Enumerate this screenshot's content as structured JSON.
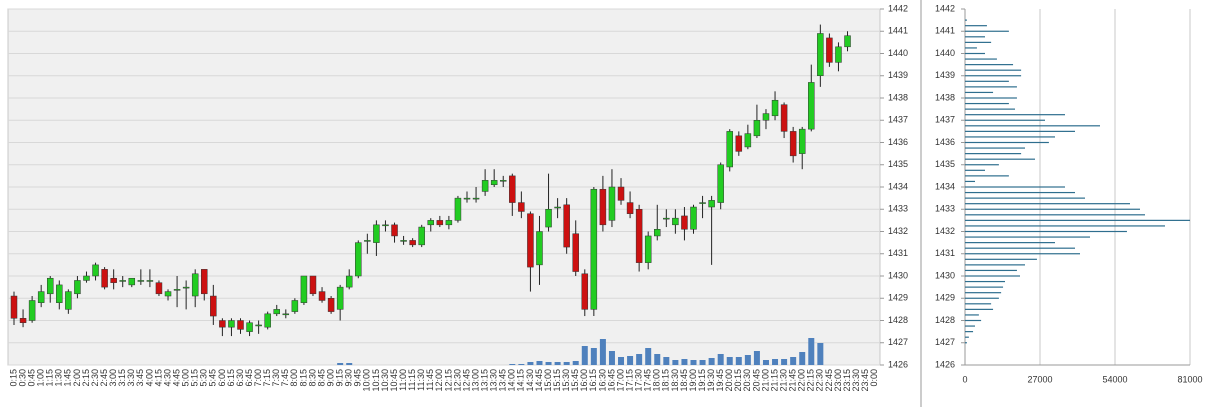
{
  "chart_data": [
    {
      "type": "candlestick",
      "categories": [
        "0:15",
        "0:30",
        "0:45",
        "1:00",
        "1:15",
        "1:30",
        "1:45",
        "2:00",
        "2:15",
        "2:30",
        "2:45",
        "3:00",
        "3:15",
        "3:30",
        "3:45",
        "4:00",
        "4:15",
        "4:30",
        "4:45",
        "5:00",
        "5:15",
        "5:30",
        "5:45",
        "6:00",
        "6:15",
        "6:30",
        "6:45",
        "7:00",
        "7:15",
        "7:30",
        "7:45",
        "8:00",
        "8:15",
        "8:30",
        "8:45",
        "9:00",
        "9:15",
        "9:30",
        "9:45",
        "10:00",
        "10:15",
        "10:30",
        "10:45",
        "11:00",
        "11:15",
        "11:30",
        "11:45",
        "12:00",
        "12:15",
        "12:30",
        "12:45",
        "13:00",
        "13:15",
        "13:30",
        "13:45",
        "14:00",
        "14:15",
        "14:30",
        "14:45",
        "15:00",
        "15:15",
        "15:30",
        "15:45",
        "16:00",
        "16:15",
        "16:30",
        "16:45",
        "17:00",
        "17:15",
        "17:30",
        "17:45",
        "18:00",
        "18:15",
        "18:30",
        "18:45",
        "19:00",
        "19:15",
        "19:30",
        "19:45",
        "20:00",
        "20:15",
        "20:30",
        "20:45",
        "21:00",
        "21:15",
        "21:30",
        "21:45",
        "22:00",
        "22:15",
        "22:30",
        "22:45",
        "23:00",
        "23:15",
        "23:30",
        "23:45",
        "0:00"
      ],
      "open": [
        1429.1,
        1428.1,
        1428.0,
        1428.8,
        1429.2,
        1428.8,
        1428.5,
        1429.2,
        1429.8,
        1430.0,
        1430.3,
        1429.9,
        1429.8,
        1429.6,
        1429.8,
        1429.8,
        1429.7,
        1429.1,
        1429.4,
        1429.5,
        1429.1,
        1430.3,
        1429.1,
        1428.0,
        1427.7,
        1428.0,
        1427.5,
        1427.8,
        1427.7,
        1428.3,
        1428.3,
        1428.4,
        1428.8,
        1430.0,
        1429.3,
        1429.0,
        1428.5,
        1429.5,
        1430.0,
        1431.6,
        1431.5,
        1432.3,
        1432.3,
        1431.6,
        1431.6,
        1431.4,
        1432.3,
        1432.5,
        1432.3,
        1432.5,
        1433.5,
        1433.5,
        1433.8,
        1434.1,
        1434.3,
        1434.5,
        1433.3,
        1432.8,
        1430.5,
        1432.2,
        1433.1,
        1433.2,
        1431.9,
        1430.1,
        1428.5,
        1433.9,
        1432.5,
        1434.0,
        1433.3,
        1433.0,
        1430.6,
        1431.8,
        1432.6,
        1432.3,
        1432.7,
        1432.1,
        1433.3,
        1433.1,
        1433.3,
        1434.9,
        1436.3,
        1435.8,
        1436.3,
        1437.0,
        1437.2,
        1437.7,
        1436.5,
        1435.5,
        1436.6,
        1439.0,
        1440.7,
        1439.6,
        1440.3,
        null,
        null,
        null
      ],
      "high": [
        1429.3,
        1428.5,
        1429.1,
        1429.6,
        1430.0,
        1429.8,
        1429.4,
        1430.0,
        1430.2,
        1430.6,
        1430.4,
        1430.3,
        1430.0,
        1429.9,
        1430.3,
        1430.3,
        1429.8,
        1429.4,
        1430.0,
        1429.8,
        1430.3,
        1430.3,
        1429.6,
        1428.1,
        1428.1,
        1428.1,
        1428.0,
        1428.0,
        1428.4,
        1428.7,
        1428.5,
        1429.0,
        1430.0,
        1430.0,
        1429.5,
        1429.1,
        1429.6,
        1430.3,
        1431.6,
        1431.9,
        1432.5,
        1432.5,
        1432.4,
        1431.8,
        1431.7,
        1432.3,
        1432.6,
        1432.7,
        1432.7,
        1433.6,
        1433.8,
        1434.0,
        1434.8,
        1434.8,
        1434.5,
        1434.6,
        1433.8,
        1432.9,
        1432.7,
        1434.6,
        1433.5,
        1433.5,
        1432.5,
        1430.3,
        1434.0,
        1434.5,
        1434.8,
        1434.4,
        1433.8,
        1433.2,
        1432.0,
        1433.2,
        1433.0,
        1433.0,
        1433.1,
        1433.2,
        1433.6,
        1433.6,
        1435.1,
        1436.6,
        1436.5,
        1436.8,
        1437.7,
        1437.5,
        1438.3,
        1437.8,
        1436.7,
        1436.7,
        1439.5,
        1441.3,
        1440.9,
        1440.5,
        1441.0,
        null,
        null,
        null
      ],
      "low": [
        1427.8,
        1427.7,
        1427.9,
        1428.6,
        1428.8,
        1428.5,
        1428.3,
        1429.0,
        1429.7,
        1429.8,
        1429.4,
        1429.4,
        1429.5,
        1429.5,
        1429.6,
        1429.5,
        1429.1,
        1428.9,
        1428.6,
        1428.5,
        1428.6,
        1428.9,
        1427.8,
        1427.3,
        1427.3,
        1427.4,
        1427.3,
        1427.4,
        1427.6,
        1428.2,
        1428.1,
        1428.3,
        1428.7,
        1429.1,
        1428.8,
        1428.3,
        1428.0,
        1429.4,
        1429.9,
        1431.0,
        1430.9,
        1432.0,
        1431.5,
        1431.4,
        1431.3,
        1431.3,
        1432.0,
        1432.2,
        1432.1,
        1432.4,
        1433.3,
        1433.3,
        1433.6,
        1434.0,
        1434.0,
        1432.7,
        1432.6,
        1429.3,
        1429.6,
        1432.0,
        1432.6,
        1431.0,
        1430.0,
        1428.2,
        1428.2,
        1432.0,
        1432.2,
        1433.2,
        1432.6,
        1430.2,
        1430.3,
        1431.6,
        1432.2,
        1431.9,
        1431.6,
        1431.9,
        1432.6,
        1430.5,
        1433.0,
        1434.7,
        1435.4,
        1435.7,
        1436.2,
        1436.6,
        1437.0,
        1436.2,
        1435.1,
        1434.8,
        1436.5,
        1438.5,
        1439.4,
        1439.2,
        1440.1,
        null,
        null,
        null
      ],
      "close": [
        1428.1,
        1427.9,
        1428.9,
        1429.3,
        1429.9,
        1429.6,
        1429.3,
        1429.8,
        1430.0,
        1430.5,
        1429.5,
        1429.7,
        1429.8,
        1429.9,
        1429.8,
        1429.8,
        1429.2,
        1429.3,
        1429.4,
        1429.5,
        1430.1,
        1429.2,
        1428.2,
        1427.7,
        1428.0,
        1427.6,
        1427.9,
        1427.8,
        1428.3,
        1428.5,
        1428.3,
        1428.9,
        1430.0,
        1429.2,
        1428.9,
        1428.4,
        1429.5,
        1430.0,
        1431.5,
        1431.6,
        1432.3,
        1432.3,
        1431.8,
        1431.6,
        1431.4,
        1432.2,
        1432.5,
        1432.3,
        1432.5,
        1433.5,
        1433.5,
        1433.5,
        1434.3,
        1434.3,
        1434.3,
        1433.3,
        1432.9,
        1430.4,
        1432.0,
        1433.0,
        1433.1,
        1431.3,
        1430.2,
        1428.5,
        1433.9,
        1432.3,
        1434.0,
        1433.4,
        1432.8,
        1430.6,
        1431.8,
        1432.1,
        1432.6,
        1432.6,
        1432.1,
        1433.1,
        1433.3,
        1433.4,
        1435.0,
        1436.5,
        1435.6,
        1436.4,
        1437.0,
        1437.3,
        1437.9,
        1436.5,
        1435.4,
        1436.6,
        1438.7,
        1440.9,
        1439.6,
        1440.3,
        1440.8,
        null,
        null,
        null
      ],
      "volume": [
        0,
        0,
        0,
        0,
        0,
        0,
        0,
        0,
        0,
        0,
        0,
        0,
        0,
        0,
        0,
        0,
        0,
        0,
        0,
        0,
        0,
        0,
        0,
        0,
        0,
        0,
        0,
        0,
        0,
        0,
        0,
        0,
        0,
        0,
        0,
        0,
        2,
        2,
        0,
        0,
        0,
        0,
        0,
        0,
        0,
        0,
        0,
        0,
        0,
        0,
        0,
        0,
        0,
        0,
        0,
        1,
        1,
        3,
        4,
        3,
        3,
        3,
        4,
        19,
        17,
        26,
        14,
        8,
        9,
        11,
        17,
        11,
        8,
        5,
        6,
        5,
        5,
        7,
        11,
        8,
        8,
        10,
        14,
        5,
        6,
        6,
        8,
        13,
        27,
        22,
        0,
        0,
        0,
        null,
        null,
        null
      ],
      "up_color": "#22cc22",
      "down_color": "#cc1111",
      "volume_color": "#4f81bd",
      "ylim": [
        1426,
        1442
      ],
      "yticks": [
        1426,
        1427,
        1428,
        1429,
        1430,
        1431,
        1432,
        1433,
        1434,
        1435,
        1436,
        1437,
        1438,
        1439,
        1440,
        1441,
        1442
      ],
      "grid": true
    },
    {
      "type": "hbar",
      "categories": [
        1441.5,
        1441.25,
        1441,
        1440.75,
        1440.5,
        1440.25,
        1440,
        1439.75,
        1439.5,
        1439.25,
        1439,
        1438.75,
        1438.5,
        1438.25,
        1438,
        1437.75,
        1437.5,
        1437.25,
        1437,
        1436.75,
        1436.5,
        1436.25,
        1436,
        1435.75,
        1435.5,
        1435.25,
        1435,
        1434.75,
        1434.5,
        1434.25,
        1434,
        1433.75,
        1433.5,
        1433.25,
        1433,
        1432.75,
        1432.5,
        1432.25,
        1432,
        1431.75,
        1431.5,
        1431.25,
        1431,
        1430.75,
        1430.5,
        1430.25,
        1430,
        1429.75,
        1429.5,
        1429.25,
        1429,
        1428.75,
        1428.5,
        1428.25,
        1428,
        1427.75,
        1427.5,
        1427.25,
        1427
      ],
      "values": [
        700,
        7900,
        15800,
        7200,
        9400,
        4300,
        7200,
        11500,
        17300,
        20200,
        20200,
        15800,
        18700,
        10100,
        18700,
        15800,
        18000,
        36000,
        28800,
        48600,
        39600,
        32400,
        30200,
        21600,
        20200,
        25200,
        12200,
        7200,
        15800,
        3600,
        36000,
        39600,
        43200,
        59400,
        63000,
        64800,
        81000,
        72000,
        58300,
        45000,
        32400,
        39600,
        41400,
        25900,
        21600,
        18700,
        19800,
        14400,
        13700,
        13000,
        12200,
        9400,
        10100,
        5000,
        5800,
        3600,
        2900,
        1400,
        700
      ],
      "color": "#2e6e8e",
      "xlim": [
        0,
        81000
      ],
      "xticks": [
        0,
        27000,
        54000,
        81000
      ],
      "ylim": [
        1426,
        1442
      ],
      "yticks": [
        1426,
        1427,
        1428,
        1429,
        1430,
        1431,
        1432,
        1433,
        1434,
        1435,
        1436,
        1437,
        1438,
        1439,
        1440,
        1441,
        1442
      ],
      "grid": true
    }
  ]
}
